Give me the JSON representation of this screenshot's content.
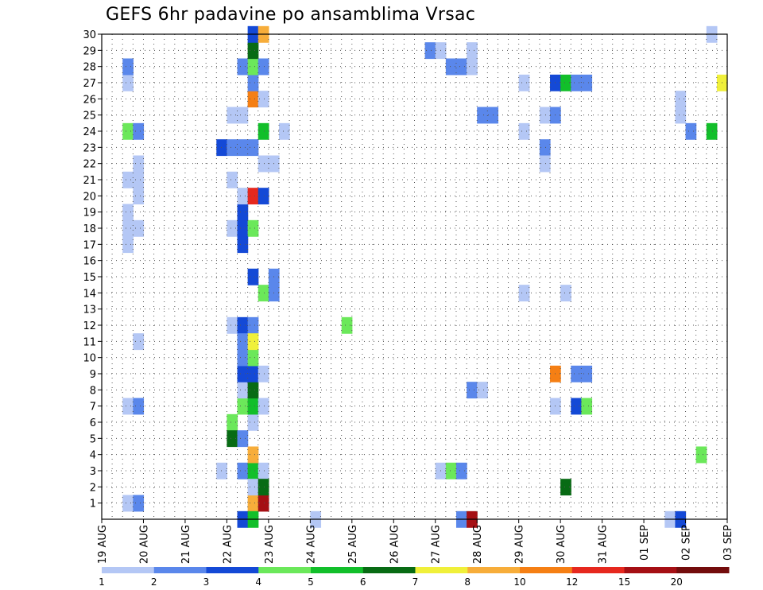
{
  "chart_data": {
    "type": "heatmap",
    "title": "GEFS 6hr padavine po ansamblima Vrsac",
    "x_tick_labels": [
      "19 AUG",
      "20 AUG",
      "21 AUG",
      "22 AUG",
      "23 AUG",
      "24 AUG",
      "25 AUG",
      "26 AUG",
      "27 AUG",
      "28 AUG",
      "29 AUG",
      "30 AUG",
      "31 AUG",
      "01 SEP",
      "02 SEP",
      "03 SEP"
    ],
    "y_tick_labels": [
      "1",
      "2",
      "3",
      "4",
      "5",
      "6",
      "7",
      "8",
      "9",
      "10",
      "11",
      "12",
      "13",
      "14",
      "15",
      "16",
      "17",
      "18",
      "19",
      "20",
      "21",
      "22",
      "23",
      "24",
      "25",
      "26",
      "27",
      "28",
      "29",
      "30"
    ],
    "x_range": [
      "19 AUG 00z",
      "03 SEP 00z"
    ],
    "y_range": [
      0,
      30
    ],
    "grid": true,
    "levels": [
      1,
      2,
      3,
      4,
      5,
      6,
      7,
      8,
      10,
      12,
      15,
      20
    ],
    "level_colors": [
      "#b4c7f5",
      "#5a87eb",
      "#1449d6",
      "#6be85a",
      "#12bf2a",
      "#086b14",
      "#f0f03a",
      "#f7ad3a",
      "#f57f14",
      "#e6281e",
      "#a50f14",
      "#730c0c"
    ],
    "cells": [
      {
        "t": "19 AUG 12z",
        "m": 1,
        "v": 1
      },
      {
        "t": "19 AUG 18z",
        "m": 1,
        "v": 2
      },
      {
        "t": "19 AUG 12z",
        "m": 7,
        "v": 0
      },
      {
        "t": "19 AUG 18z",
        "m": 7,
        "v": 2
      },
      {
        "t": "19 AUG 18z",
        "m": 11,
        "v": 1
      },
      {
        "t": "19 AUG 12z",
        "m": 17,
        "v": 1
      },
      {
        "t": "19 AUG 12z",
        "m": 18,
        "v": 1
      },
      {
        "t": "19 AUG 18z",
        "m": 18,
        "v": 1
      },
      {
        "t": "19 AUG 12z",
        "m": 19,
        "v": 1
      },
      {
        "t": "19 AUG 18z",
        "m": 20,
        "v": 1
      },
      {
        "t": "19 AUG 12z",
        "m": 21,
        "v": 1
      },
      {
        "t": "19 AUG 18z",
        "m": 21,
        "v": 1
      },
      {
        "t": "19 AUG 18z",
        "m": 22,
        "v": 1
      },
      {
        "t": "19 AUG 12z",
        "m": 24,
        "v": 4
      },
      {
        "t": "19 AUG 18z",
        "m": 24,
        "v": 2
      },
      {
        "t": "19 AUG 12z",
        "m": 27,
        "v": 1
      },
      {
        "t": "19 AUG 12z",
        "m": 28,
        "v": 2
      },
      {
        "t": "21 AUG 18z",
        "m": 3,
        "v": 1
      },
      {
        "t": "21 AUG 18z",
        "m": 23,
        "v": 3
      },
      {
        "t": "22 AUG 00z",
        "m": 6,
        "v": 4
      },
      {
        "t": "22 AUG 00z",
        "m": 5,
        "v": 6
      },
      {
        "t": "22 AUG 06z",
        "m": 5,
        "v": 2
      },
      {
        "t": "22 AUG 00z",
        "m": 12,
        "v": 1
      },
      {
        "t": "22 AUG 06z",
        "m": 12,
        "v": 3
      },
      {
        "t": "22 AUG 12z",
        "m": 12,
        "v": 2
      },
      {
        "t": "22 AUG 06z",
        "m": 3,
        "v": 2
      },
      {
        "t": "22 AUG 12z",
        "m": 3,
        "v": 5
      },
      {
        "t": "22 AUG 18z",
        "m": 3,
        "v": 1
      },
      {
        "t": "22 AUG 12z",
        "m": 4,
        "v": 8
      },
      {
        "t": "22 AUG 12z",
        "m": 6,
        "v": 1
      },
      {
        "t": "22 AUG 06z",
        "m": 7,
        "v": 4
      },
      {
        "t": "22 AUG 12z",
        "m": 7,
        "v": 5
      },
      {
        "t": "22 AUG 18z",
        "m": 7,
        "v": 1
      },
      {
        "t": "22 AUG 06z",
        "m": 8,
        "v": 1
      },
      {
        "t": "22 AUG 12z",
        "m": 8,
        "v": 6
      },
      {
        "t": "22 AUG 06z",
        "m": 9,
        "v": 3
      },
      {
        "t": "22 AUG 12z",
        "m": 9,
        "v": 3
      },
      {
        "t": "22 AUG 18z",
        "m": 9,
        "v": 1
      },
      {
        "t": "22 AUG 06z",
        "m": 10,
        "v": 2
      },
      {
        "t": "22 AUG 12z",
        "m": 10,
        "v": 4
      },
      {
        "t": "22 AUG 06z",
        "m": 11,
        "v": 2
      },
      {
        "t": "22 AUG 12z",
        "m": 11,
        "v": 7
      },
      {
        "t": "22 AUG 00z",
        "m": 18,
        "v": 1
      },
      {
        "t": "22 AUG 06z",
        "m": 18,
        "v": 3
      },
      {
        "t": "22 AUG 12z",
        "m": 18,
        "v": 4
      },
      {
        "t": "22 AUG 06z",
        "m": 17,
        "v": 3
      },
      {
        "t": "22 AUG 06z",
        "m": 19,
        "v": 3
      },
      {
        "t": "22 AUG 06z",
        "m": 20,
        "v": 1
      },
      {
        "t": "22 AUG 12z",
        "m": 20,
        "v": 12
      },
      {
        "t": "22 AUG 18z",
        "m": 20,
        "v": 3
      },
      {
        "t": "22 AUG 00z",
        "m": 21,
        "v": 1
      },
      {
        "t": "22 AUG 00z",
        "m": 23,
        "v": 2
      },
      {
        "t": "22 AUG 06z",
        "m": 23,
        "v": 2
      },
      {
        "t": "22 AUG 12z",
        "m": 23,
        "v": 2
      },
      {
        "t": "22 AUG 18z",
        "m": 22,
        "v": 1
      },
      {
        "t": "23 AUG 00z",
        "m": 22,
        "v": 1
      },
      {
        "t": "22 AUG 18z",
        "m": 24,
        "v": 5
      },
      {
        "t": "23 AUG 06z",
        "m": 24,
        "v": 1
      },
      {
        "t": "22 AUG 00z",
        "m": 25,
        "v": 1
      },
      {
        "t": "22 AUG 06z",
        "m": 25,
        "v": 1
      },
      {
        "t": "22 AUG 12z",
        "m": 26,
        "v": 10
      },
      {
        "t": "22 AUG 18z",
        "m": 26,
        "v": 1
      },
      {
        "t": "22 AUG 12z",
        "m": 27,
        "v": 2
      },
      {
        "t": "22 AUG 06z",
        "m": 28,
        "v": 2
      },
      {
        "t": "22 AUG 12z",
        "m": 28,
        "v": 4
      },
      {
        "t": "22 AUG 18z",
        "m": 28,
        "v": 2
      },
      {
        "t": "22 AUG 12z",
        "m": 29,
        "v": 6
      },
      {
        "t": "22 AUG 12z",
        "m": 30,
        "v": 3
      },
      {
        "t": "22 AUG 18z",
        "m": 30,
        "v": 8
      },
      {
        "t": "22 AUG 18z",
        "m": 14,
        "v": 4
      },
      {
        "t": "23 AUG 00z",
        "m": 14,
        "v": 2
      },
      {
        "t": "23 AUG 00z",
        "m": 15,
        "v": 2
      },
      {
        "t": "22 AUG 12z",
        "m": 15,
        "v": 3
      },
      {
        "t": "22 AUG 12z",
        "m": 1,
        "v": 8
      },
      {
        "t": "22 AUG 18z",
        "m": 1,
        "v": 15
      },
      {
        "t": "22 AUG 12z",
        "m": 2,
        "v": 1
      },
      {
        "t": "22 AUG 18z",
        "m": 2,
        "v": 6
      },
      {
        "t": "22 AUG 06z",
        "m": 0,
        "v": 3
      },
      {
        "t": "22 AUG 12z",
        "m": 0,
        "v": 5
      },
      {
        "t": "24 AUG 18z",
        "m": 12,
        "v": 4
      },
      {
        "t": "24 AUG 00z",
        "m": 0,
        "v": 1
      },
      {
        "t": "27 AUG 00z",
        "m": 3,
        "v": 1
      },
      {
        "t": "27 AUG 06z",
        "m": 3,
        "v": 4
      },
      {
        "t": "27 AUG 12z",
        "m": 3,
        "v": 2
      },
      {
        "t": "27 AUG 12z",
        "m": 0,
        "v": 2
      },
      {
        "t": "27 AUG 18z",
        "m": 0,
        "v": 15
      },
      {
        "t": "27 AUG 18z",
        "m": 8,
        "v": 2
      },
      {
        "t": "28 AUG 00z",
        "m": 8,
        "v": 1
      },
      {
        "t": "26 AUG 18z",
        "m": 29,
        "v": 2
      },
      {
        "t": "27 AUG 00z",
        "m": 29,
        "v": 1
      },
      {
        "t": "27 AUG 18z",
        "m": 29,
        "v": 1
      },
      {
        "t": "27 AUG 06z",
        "m": 28,
        "v": 2
      },
      {
        "t": "27 AUG 12z",
        "m": 28,
        "v": 2
      },
      {
        "t": "27 AUG 18z",
        "m": 28,
        "v": 1
      },
      {
        "t": "28 AUG 00z",
        "m": 25,
        "v": 2
      },
      {
        "t": "28 AUG 06z",
        "m": 25,
        "v": 2
      },
      {
        "t": "29 AUG 00z",
        "m": 27,
        "v": 1
      },
      {
        "t": "29 AUG 00z",
        "m": 24,
        "v": 1
      },
      {
        "t": "29 AUG 00z",
        "m": 14,
        "v": 1
      },
      {
        "t": "29 AUG 12z",
        "m": 25,
        "v": 1
      },
      {
        "t": "29 AUG 18z",
        "m": 25,
        "v": 2
      },
      {
        "t": "29 AUG 12z",
        "m": 23,
        "v": 2
      },
      {
        "t": "29 AUG 12z",
        "m": 22,
        "v": 1
      },
      {
        "t": "29 AUG 18z",
        "m": 27,
        "v": 3
      },
      {
        "t": "30 AUG 00z",
        "m": 27,
        "v": 5
      },
      {
        "t": "30 AUG 06z",
        "m": 27,
        "v": 2
      },
      {
        "t": "30 AUG 12z",
        "m": 27,
        "v": 2
      },
      {
        "t": "29 AUG 18z",
        "m": 9,
        "v": 10
      },
      {
        "t": "30 AUG 06z",
        "m": 9,
        "v": 2
      },
      {
        "t": "30 AUG 12z",
        "m": 9,
        "v": 2
      },
      {
        "t": "29 AUG 18z",
        "m": 7,
        "v": 1
      },
      {
        "t": "30 AUG 06z",
        "m": 7,
        "v": 3
      },
      {
        "t": "30 AUG 12z",
        "m": 7,
        "v": 4
      },
      {
        "t": "30 AUG 00z",
        "m": 2,
        "v": 6
      },
      {
        "t": "30 AUG 00z",
        "m": 14,
        "v": 1
      },
      {
        "t": "01 SEP 18z",
        "m": 26,
        "v": 1
      },
      {
        "t": "01 SEP 18z",
        "m": 25,
        "v": 1
      },
      {
        "t": "02 SEP 00z",
        "m": 24,
        "v": 2
      },
      {
        "t": "02 SEP 12z",
        "m": 24,
        "v": 5
      },
      {
        "t": "02 SEP 06z",
        "m": 4,
        "v": 4
      },
      {
        "t": "02 SEP 12z",
        "m": 30,
        "v": 1
      },
      {
        "t": "02 SEP 18z",
        "m": 27,
        "v": 7
      },
      {
        "t": "01 SEP 12z",
        "m": 0,
        "v": 1
      },
      {
        "t": "01 SEP 18z",
        "m": 0,
        "v": 3
      }
    ]
  }
}
